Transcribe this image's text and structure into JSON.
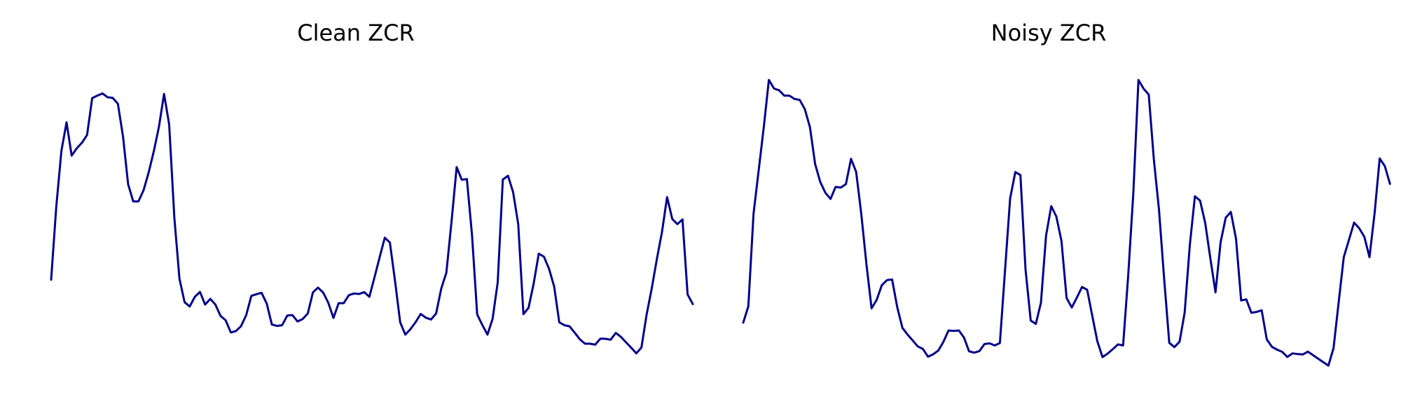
{
  "figure": {
    "line_color": "#00008B",
    "background": "#ffffff"
  },
  "chart_data": [
    {
      "type": "line",
      "title": "Clean ZCR",
      "xlabel": "",
      "ylabel": "",
      "axes_visible": false,
      "grid": false,
      "legend": "none",
      "xlim": [
        0,
        119
      ],
      "ylim": [
        0.055,
        0.192
      ],
      "series": [
        {
          "values": [
            0.1005,
            0.1315,
            0.1555,
            0.1676,
            0.1534,
            0.1565,
            0.1589,
            0.1622,
            0.1779,
            0.179,
            0.1799,
            0.1783,
            0.178,
            0.1755,
            0.1616,
            0.1412,
            0.1339,
            0.1339,
            0.1386,
            0.1462,
            0.1553,
            0.1657,
            0.1797,
            0.1667,
            0.1269,
            0.1009,
            0.0909,
            0.0891,
            0.0932,
            0.0953,
            0.0899,
            0.0923,
            0.0899,
            0.0851,
            0.0832,
            0.078,
            0.0786,
            0.0807,
            0.0854,
            0.0936,
            0.0943,
            0.0949,
            0.0903,
            0.0814,
            0.0808,
            0.0811,
            0.0852,
            0.0854,
            0.0827,
            0.0837,
            0.0861,
            0.0951,
            0.0971,
            0.095,
            0.0906,
            0.0842,
            0.0905,
            0.0905,
            0.0939,
            0.0946,
            0.0944,
            0.0952,
            0.0932,
            0.1015,
            0.1101,
            0.1184,
            0.1163,
            0.0998,
            0.0823,
            0.0771,
            0.0794,
            0.0824,
            0.0859,
            0.0843,
            0.0835,
            0.0861,
            0.0967,
            0.1035,
            0.1253,
            0.1485,
            0.1431,
            0.1434,
            0.1193,
            0.0857,
            0.0812,
            0.0771,
            0.0838,
            0.0993,
            0.1432,
            0.1448,
            0.1378,
            0.1242,
            0.0858,
            0.0885,
            0.0988,
            0.1116,
            0.1103,
            0.1051,
            0.0976,
            0.0823,
            0.0811,
            0.0806,
            0.0779,
            0.0751,
            0.0732,
            0.0732,
            0.0728,
            0.0754,
            0.0753,
            0.0749,
            0.0778,
            0.0761,
            0.0738,
            0.0715,
            0.0691,
            0.0716,
            0.0855,
            0.0966,
            0.1093,
            0.1208,
            0.1357,
            0.1264,
            0.1242,
            0.1262,
            0.0942,
            0.0901
          ]
        }
      ]
    },
    {
      "type": "line",
      "title": "Noisy ZCR",
      "xlabel": "",
      "ylabel": "",
      "axes_visible": false,
      "grid": false,
      "legend": "none",
      "xlim": [
        0,
        119
      ],
      "ylim": [
        0.0435,
        0.2255
      ],
      "series": [
        {
          "values": [
            0.0796,
            0.0889,
            0.1413,
            0.1657,
            0.1902,
            0.2171,
            0.2122,
            0.2112,
            0.2082,
            0.2082,
            0.2063,
            0.2058,
            0.2006,
            0.1902,
            0.1695,
            0.1594,
            0.1532,
            0.1497,
            0.1565,
            0.1561,
            0.1581,
            0.1724,
            0.165,
            0.1413,
            0.1127,
            0.0877,
            0.0925,
            0.1008,
            0.1037,
            0.1041,
            0.0885,
            0.0767,
            0.0729,
            0.0696,
            0.0662,
            0.0647,
            0.0603,
            0.0617,
            0.0638,
            0.0688,
            0.0752,
            0.0749,
            0.0752,
            0.0712,
            0.0634,
            0.0626,
            0.0635,
            0.0675,
            0.0679,
            0.0667,
            0.0681,
            0.1091,
            0.1499,
            0.1649,
            0.1632,
            0.1097,
            0.0808,
            0.0789,
            0.0909,
            0.1289,
            0.1456,
            0.1397,
            0.1259,
            0.0936,
            0.0882,
            0.0938,
            0.0998,
            0.0982,
            0.0834,
            0.0689,
            0.0601,
            0.0621,
            0.0646,
            0.0673,
            0.0667,
            0.1065,
            0.1531,
            0.2171,
            0.2121,
            0.2088,
            0.172,
            0.1437,
            0.1044,
            0.0682,
            0.0658,
            0.0688,
            0.0854,
            0.1234,
            0.1512,
            0.1487,
            0.1361,
            0.1161,
            0.0968,
            0.1252,
            0.1391,
            0.1423,
            0.1271,
            0.0922,
            0.0928,
            0.0852,
            0.0857,
            0.0866,
            0.0701,
            0.0659,
            0.0643,
            0.0631,
            0.0602,
            0.0622,
            0.0618,
            0.0616,
            0.0632,
            0.0612,
            0.0592,
            0.0572,
            0.0553,
            0.0652,
            0.0911,
            0.1167,
            0.1265,
            0.1363,
            0.1331,
            0.1282,
            0.1167,
            0.1416,
            0.1726,
            0.1682,
            0.1582
          ]
        }
      ]
    }
  ]
}
